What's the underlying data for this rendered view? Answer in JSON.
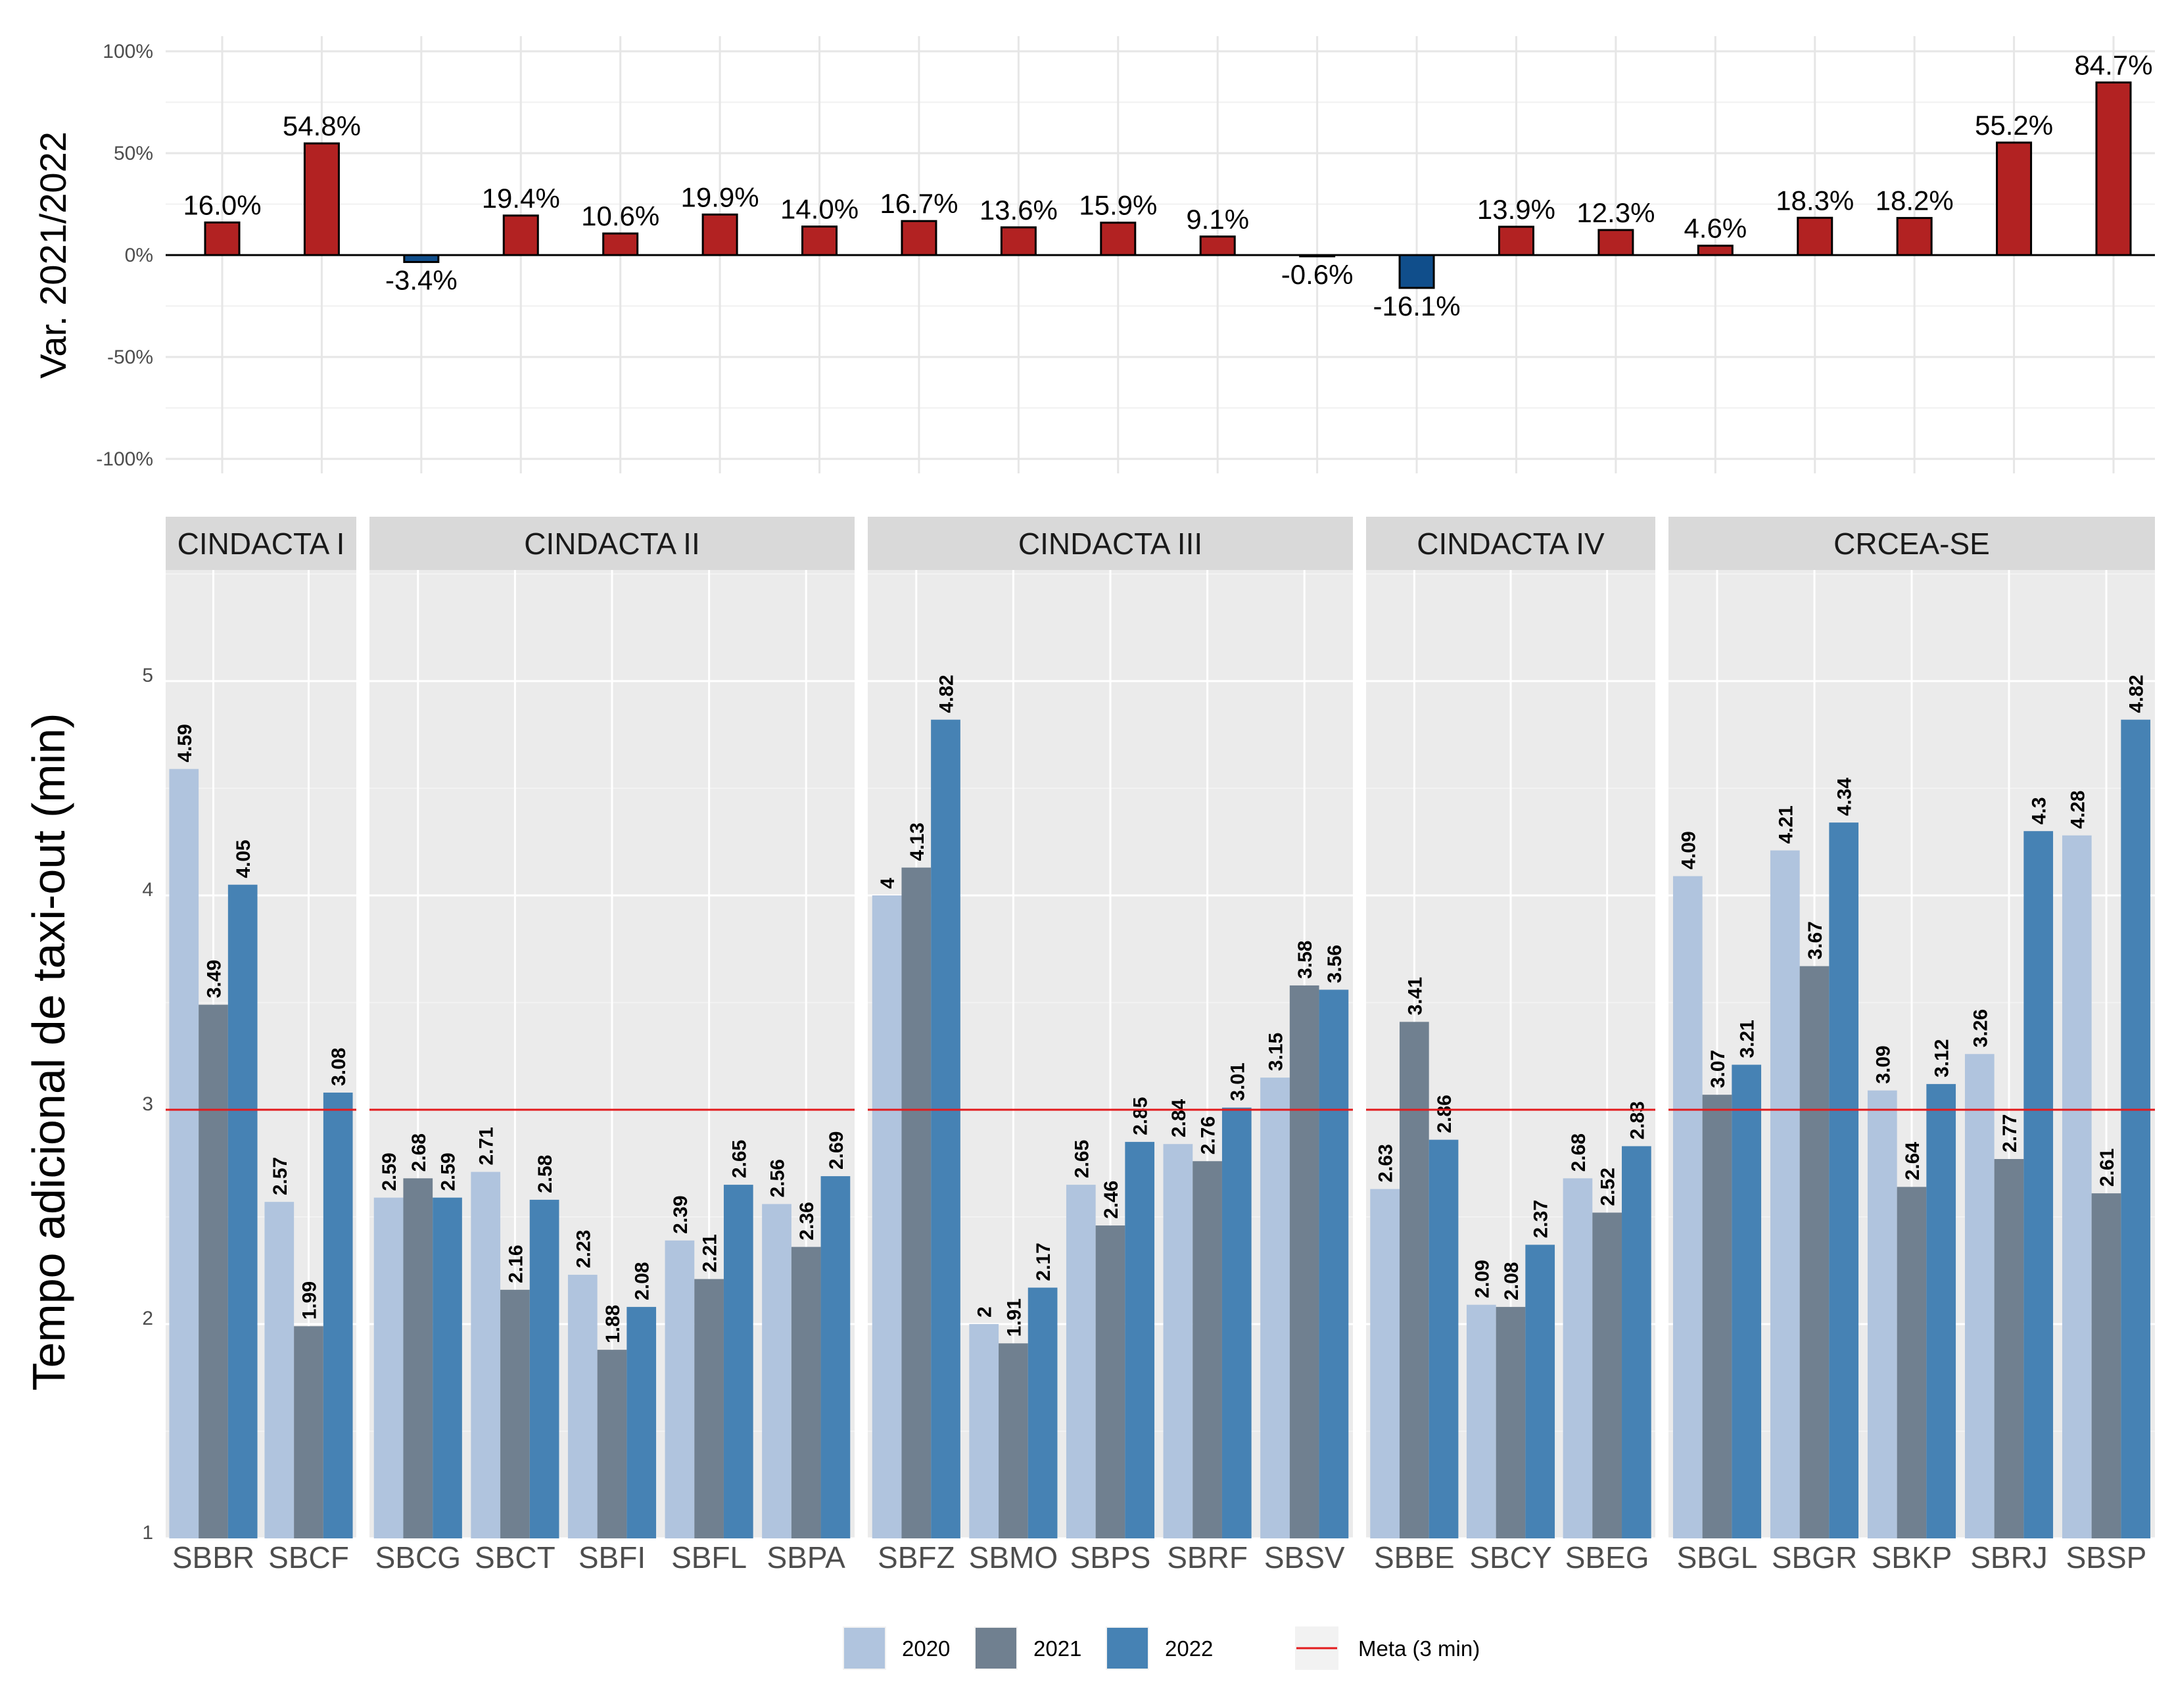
{
  "chart_data": [
    {
      "type": "bar",
      "ylabel": "Var. 2021/2022",
      "ylim": [
        -100,
        100
      ],
      "y_ticks": [
        "100%",
        "50%",
        "0%",
        "-50%",
        "-100%"
      ],
      "categories": [
        "SBBR",
        "SBCF",
        "SBCG",
        "SBCT",
        "SBFI",
        "SBFL",
        "SBPA",
        "SBFZ",
        "SBMO",
        "SBPS",
        "SBRF",
        "SBSV",
        "SBBE",
        "SBCY",
        "SBEG",
        "SBGL",
        "SBGR",
        "SBKP",
        "SBRJ",
        "SBSP"
      ],
      "values": [
        16.0,
        54.8,
        -3.4,
        19.4,
        10.6,
        19.9,
        14.0,
        16.7,
        13.6,
        15.9,
        9.1,
        -0.6,
        -16.1,
        13.9,
        12.3,
        4.6,
        18.3,
        18.2,
        55.2,
        84.7
      ],
      "labels": [
        "16.0%",
        "54.8%",
        "-3.4%",
        "19.4%",
        "10.6%",
        "19.9%",
        "14.0%",
        "16.7%",
        "13.6%",
        "15.9%",
        "9.1%",
        "-0.6%",
        "-16.1%",
        "13.9%",
        "12.3%",
        "4.6%",
        "18.3%",
        "18.2%",
        "55.2%",
        "84.7%"
      ],
      "colors": {
        "positive": "#b22222",
        "negative": "#104e8b"
      },
      "grid": true
    },
    {
      "type": "bar",
      "ylabel": "Tempo adicional de taxi-out (min)",
      "ylim": [
        1,
        5.5
      ],
      "y_ticks": [
        "1",
        "2",
        "3",
        "4",
        "5"
      ],
      "facets": [
        {
          "name": "CINDACTA I",
          "airports": [
            "SBBR",
            "SBCF"
          ]
        },
        {
          "name": "CINDACTA II",
          "airports": [
            "SBCG",
            "SBCT",
            "SBFI",
            "SBFL",
            "SBPA"
          ]
        },
        {
          "name": "CINDACTA III",
          "airports": [
            "SBFZ",
            "SBMO",
            "SBPS",
            "SBRF",
            "SBSV"
          ]
        },
        {
          "name": "CINDACTA IV",
          "airports": [
            "SBBE",
            "SBCY",
            "SBEG"
          ]
        },
        {
          "name": "CRCEA-SE",
          "airports": [
            "SBGL",
            "SBGR",
            "SBKP",
            "SBRJ",
            "SBSP"
          ]
        }
      ],
      "series": [
        {
          "name": "2020",
          "color": "#b0c4de",
          "values": [
            4.59,
            2.57,
            2.59,
            2.71,
            2.23,
            2.39,
            2.56,
            4,
            2,
            2.65,
            2.84,
            3.15,
            2.63,
            2.09,
            2.68,
            4.09,
            4.21,
            3.09,
            3.26,
            4.28
          ],
          "labels": [
            "4.59",
            "2.57",
            "2.59",
            "2.71",
            "2.23",
            "2.39",
            "2.56",
            "4",
            "2",
            "2.65",
            "2.84",
            "3.15",
            "2.63",
            "2.09",
            "2.68",
            "4.09",
            "4.21",
            "3.09",
            "3.26",
            "4.28"
          ]
        },
        {
          "name": "2021",
          "color": "#708090",
          "values": [
            3.49,
            1.99,
            2.68,
            2.16,
            1.88,
            2.21,
            2.36,
            4.13,
            1.91,
            2.46,
            2.76,
            3.58,
            3.41,
            2.08,
            2.52,
            3.07,
            3.67,
            2.64,
            2.77,
            2.61
          ],
          "labels": [
            "3.49",
            "1.99",
            "2.68",
            "2.16",
            "1.88",
            "2.21",
            "2.36",
            "4.13",
            "1.91",
            "2.46",
            "2.76",
            "3.58",
            "3.41",
            "2.08",
            "2.52",
            "3.07",
            "3.67",
            "2.64",
            "2.77",
            "2.61"
          ]
        },
        {
          "name": "2022",
          "color": "#4682b4",
          "values": [
            4.05,
            3.08,
            2.59,
            2.58,
            2.08,
            2.65,
            2.69,
            4.82,
            2.17,
            2.85,
            3.01,
            3.56,
            2.86,
            2.37,
            2.83,
            3.21,
            4.34,
            3.12,
            4.3,
            4.82
          ],
          "labels": [
            "4.05",
            "3.08",
            "2.59",
            "2.58",
            "2.08",
            "2.65",
            "2.69",
            "4.82",
            "2.17",
            "2.85",
            "3.01",
            "3.56",
            "2.86",
            "2.37",
            "2.83",
            "3.21",
            "4.34",
            "3.12",
            "4.3",
            "4.82"
          ]
        }
      ],
      "reference_line": {
        "value": 3,
        "label": "Meta (3 min)",
        "color": "#e31a1c"
      },
      "legend_position": "bottom",
      "grid": true
    }
  ]
}
